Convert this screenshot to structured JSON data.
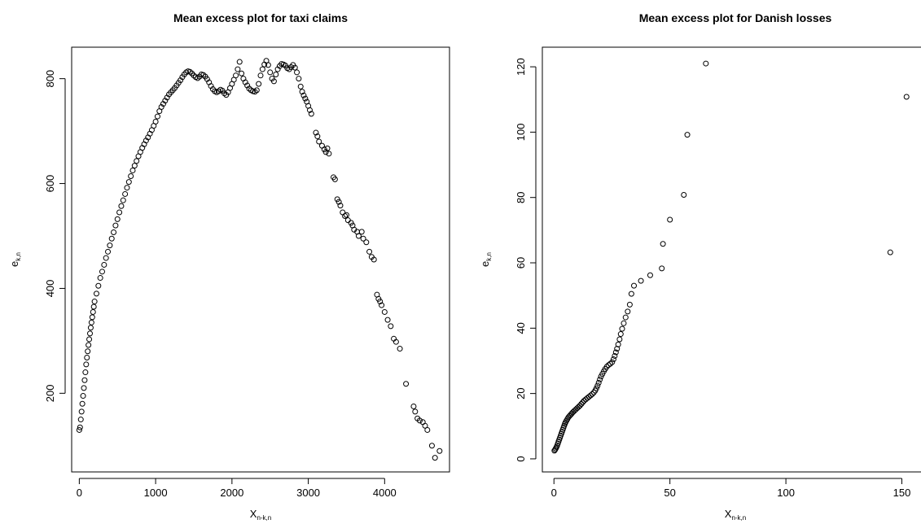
{
  "chart_data": [
    {
      "type": "scatter",
      "title": "Mean excess plot for taxi claims",
      "xlabel": "X",
      "xlabel_sub": "n-k,n",
      "ylabel": "e",
      "ylabel_sub": "k,n",
      "xlim": [
        -100,
        4850
      ],
      "ylim": [
        50,
        860
      ],
      "xticks": [
        0,
        1000,
        2000,
        3000,
        4000
      ],
      "yticks": [
        200,
        400,
        600,
        800
      ],
      "marker": "open-circle",
      "color": "#000000",
      "points": [
        [
          0,
          130
        ],
        [
          10,
          135
        ],
        [
          20,
          150
        ],
        [
          30,
          165
        ],
        [
          40,
          180
        ],
        [
          50,
          195
        ],
        [
          60,
          210
        ],
        [
          70,
          225
        ],
        [
          80,
          240
        ],
        [
          90,
          255
        ],
        [
          100,
          268
        ],
        [
          110,
          280
        ],
        [
          120,
          292
        ],
        [
          130,
          303
        ],
        [
          140,
          314
        ],
        [
          150,
          325
        ],
        [
          160,
          335
        ],
        [
          170,
          345
        ],
        [
          180,
          355
        ],
        [
          190,
          365
        ],
        [
          200,
          375
        ],
        [
          225,
          390
        ],
        [
          250,
          405
        ],
        [
          275,
          420
        ],
        [
          300,
          432
        ],
        [
          325,
          445
        ],
        [
          350,
          458
        ],
        [
          375,
          470
        ],
        [
          400,
          482
        ],
        [
          425,
          495
        ],
        [
          450,
          507
        ],
        [
          475,
          520
        ],
        [
          500,
          532
        ],
        [
          525,
          545
        ],
        [
          550,
          557
        ],
        [
          575,
          568
        ],
        [
          600,
          580
        ],
        [
          625,
          592
        ],
        [
          650,
          603
        ],
        [
          675,
          614
        ],
        [
          700,
          625
        ],
        [
          725,
          634
        ],
        [
          750,
          643
        ],
        [
          775,
          652
        ],
        [
          800,
          660
        ],
        [
          825,
          668
        ],
        [
          850,
          675
        ],
        [
          875,
          682
        ],
        [
          900,
          688
        ],
        [
          925,
          695
        ],
        [
          950,
          702
        ],
        [
          975,
          710
        ],
        [
          1000,
          718
        ],
        [
          1025,
          728
        ],
        [
          1050,
          738
        ],
        [
          1075,
          746
        ],
        [
          1100,
          752
        ],
        [
          1125,
          758
        ],
        [
          1150,
          764
        ],
        [
          1175,
          770
        ],
        [
          1200,
          774
        ],
        [
          1225,
          778
        ],
        [
          1250,
          782
        ],
        [
          1275,
          787
        ],
        [
          1300,
          792
        ],
        [
          1325,
          797
        ],
        [
          1350,
          803
        ],
        [
          1375,
          808
        ],
        [
          1400,
          812
        ],
        [
          1425,
          814
        ],
        [
          1450,
          813
        ],
        [
          1475,
          810
        ],
        [
          1500,
          806
        ],
        [
          1525,
          803
        ],
        [
          1550,
          801
        ],
        [
          1575,
          804
        ],
        [
          1600,
          808
        ],
        [
          1625,
          807
        ],
        [
          1650,
          804
        ],
        [
          1675,
          799
        ],
        [
          1700,
          793
        ],
        [
          1725,
          786
        ],
        [
          1750,
          780
        ],
        [
          1775,
          776
        ],
        [
          1800,
          774
        ],
        [
          1825,
          776
        ],
        [
          1850,
          779
        ],
        [
          1875,
          777
        ],
        [
          1900,
          772
        ],
        [
          1925,
          769
        ],
        [
          1950,
          774
        ],
        [
          1975,
          782
        ],
        [
          2000,
          790
        ],
        [
          2025,
          798
        ],
        [
          2050,
          806
        ],
        [
          2075,
          818
        ],
        [
          2100,
          832
        ],
        [
          2125,
          810
        ],
        [
          2150,
          800
        ],
        [
          2175,
          793
        ],
        [
          2200,
          787
        ],
        [
          2225,
          781
        ],
        [
          2250,
          778
        ],
        [
          2275,
          776
        ],
        [
          2300,
          775
        ],
        [
          2325,
          778
        ],
        [
          2350,
          790
        ],
        [
          2375,
          806
        ],
        [
          2400,
          818
        ],
        [
          2425,
          827
        ],
        [
          2450,
          834
        ],
        [
          2475,
          826
        ],
        [
          2500,
          812
        ],
        [
          2525,
          800
        ],
        [
          2550,
          795
        ],
        [
          2575,
          808
        ],
        [
          2600,
          818
        ],
        [
          2625,
          824
        ],
        [
          2650,
          828
        ],
        [
          2675,
          827
        ],
        [
          2700,
          825
        ],
        [
          2725,
          820
        ],
        [
          2750,
          818
        ],
        [
          2775,
          822
        ],
        [
          2800,
          826
        ],
        [
          2825,
          821
        ],
        [
          2850,
          812
        ],
        [
          2875,
          800
        ],
        [
          2900,
          785
        ],
        [
          2920,
          775
        ],
        [
          2940,
          768
        ],
        [
          2960,
          762
        ],
        [
          2980,
          756
        ],
        [
          3000,
          748
        ],
        [
          3020,
          740
        ],
        [
          3040,
          733
        ],
        [
          3100,
          697
        ],
        [
          3120,
          690
        ],
        [
          3140,
          680
        ],
        [
          3180,
          672
        ],
        [
          3210,
          665
        ],
        [
          3230,
          660
        ],
        [
          3250,
          667
        ],
        [
          3270,
          657
        ],
        [
          3330,
          612
        ],
        [
          3350,
          608
        ],
        [
          3380,
          570
        ],
        [
          3400,
          565
        ],
        [
          3420,
          558
        ],
        [
          3450,
          545
        ],
        [
          3480,
          538
        ],
        [
          3500,
          540
        ],
        [
          3520,
          530
        ],
        [
          3560,
          525
        ],
        [
          3580,
          520
        ],
        [
          3600,
          512
        ],
        [
          3640,
          508
        ],
        [
          3660,
          500
        ],
        [
          3700,
          508
        ],
        [
          3720,
          495
        ],
        [
          3760,
          488
        ],
        [
          3800,
          470
        ],
        [
          3830,
          460
        ],
        [
          3860,
          455
        ],
        [
          3900,
          388
        ],
        [
          3920,
          380
        ],
        [
          3940,
          375
        ],
        [
          3960,
          368
        ],
        [
          4000,
          355
        ],
        [
          4040,
          340
        ],
        [
          4080,
          328
        ],
        [
          4120,
          304
        ],
        [
          4150,
          298
        ],
        [
          4200,
          285
        ],
        [
          4280,
          218
        ],
        [
          4380,
          175
        ],
        [
          4400,
          165
        ],
        [
          4430,
          152
        ],
        [
          4460,
          148
        ],
        [
          4500,
          145
        ],
        [
          4530,
          138
        ],
        [
          4560,
          130
        ],
        [
          4620,
          100
        ],
        [
          4660,
          77
        ],
        [
          4720,
          90
        ]
      ]
    },
    {
      "type": "scatter",
      "title": "Mean excess plot for Danish losses",
      "xlabel": "X",
      "xlabel_sub": "n-k,n",
      "ylabel": "e",
      "ylabel_sub": "k,n",
      "xlim": [
        -5,
        160
      ],
      "ylim": [
        -4,
        126
      ],
      "xticks": [
        0,
        50,
        100,
        150
      ],
      "yticks": [
        0,
        20,
        40,
        60,
        80,
        100,
        120
      ],
      "marker": "open-circle",
      "color": "#000000",
      "points": [
        [
          0.2,
          2.5
        ],
        [
          0.5,
          2.8
        ],
        [
          0.8,
          3.2
        ],
        [
          1.1,
          3.6
        ],
        [
          1.4,
          4.1
        ],
        [
          1.7,
          4.7
        ],
        [
          2.0,
          5.3
        ],
        [
          2.3,
          5.9
        ],
        [
          2.6,
          6.5
        ],
        [
          2.9,
          7.1
        ],
        [
          3.2,
          7.7
        ],
        [
          3.5,
          8.3
        ],
        [
          3.8,
          8.9
        ],
        [
          4.1,
          9.5
        ],
        [
          4.4,
          10.1
        ],
        [
          4.7,
          10.7
        ],
        [
          5.0,
          11.2
        ],
        [
          5.4,
          11.7
        ],
        [
          5.8,
          12.2
        ],
        [
          6.2,
          12.7
        ],
        [
          6.7,
          13.1
        ],
        [
          7.2,
          13.5
        ],
        [
          7.7,
          13.9
        ],
        [
          8.2,
          14.3
        ],
        [
          8.8,
          14.7
        ],
        [
          9.4,
          15.1
        ],
        [
          10.0,
          15.5
        ],
        [
          10.6,
          15.9
        ],
        [
          11.2,
          16.3
        ],
        [
          11.8,
          16.8
        ],
        [
          12.4,
          17.3
        ],
        [
          13.0,
          17.8
        ],
        [
          13.7,
          18.2
        ],
        [
          14.4,
          18.6
        ],
        [
          15.1,
          19.0
        ],
        [
          15.8,
          19.4
        ],
        [
          16.5,
          19.8
        ],
        [
          17.2,
          20.3
        ],
        [
          17.8,
          20.9
        ],
        [
          18.3,
          21.6
        ],
        [
          18.8,
          22.4
        ],
        [
          19.3,
          23.3
        ],
        [
          19.8,
          24.3
        ],
        [
          20.3,
          25.2
        ],
        [
          20.9,
          26.0
        ],
        [
          21.5,
          26.8
        ],
        [
          22.1,
          27.5
        ],
        [
          22.8,
          28.2
        ],
        [
          23.5,
          28.7
        ],
        [
          24.3,
          29.1
        ],
        [
          25.1,
          29.6
        ],
        [
          25.7,
          30.5
        ],
        [
          26.2,
          31.5
        ],
        [
          26.7,
          32.6
        ],
        [
          27.2,
          33.7
        ],
        [
          27.7,
          35.0
        ],
        [
          28.3,
          36.6
        ],
        [
          28.8,
          38.2
        ],
        [
          29.4,
          39.8
        ],
        [
          30.1,
          41.5
        ],
        [
          30.9,
          43.3
        ],
        [
          31.8,
          45.1
        ],
        [
          32.7,
          47.2
        ],
        [
          33.4,
          50.5
        ],
        [
          34.5,
          53.0
        ],
        [
          37.5,
          54.5
        ],
        [
          41.5,
          56.2
        ],
        [
          46.5,
          58.3
        ],
        [
          47.0,
          65.8
        ],
        [
          50.0,
          73.2
        ],
        [
          56.0,
          80.8
        ],
        [
          57.5,
          99.2
        ],
        [
          65.5,
          121.0
        ],
        [
          145.0,
          63.2
        ],
        [
          152.0,
          110.8
        ]
      ]
    }
  ]
}
